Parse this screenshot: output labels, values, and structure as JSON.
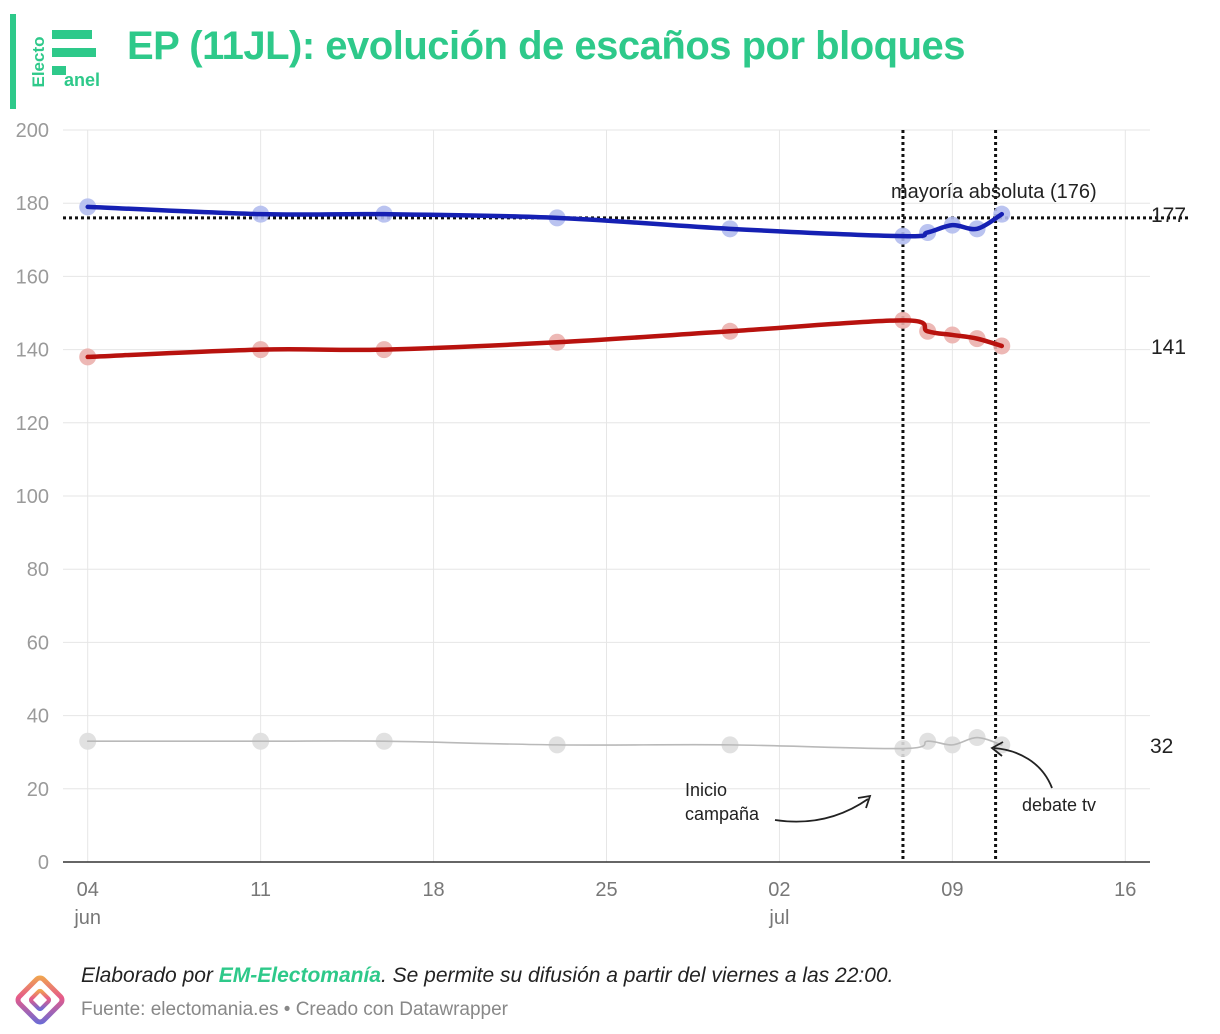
{
  "brand": {
    "logo_text_vertical": "Electo",
    "logo_text": "anel",
    "accent_color": "#2ec98a"
  },
  "title": "EP (11JL): evolución de escaños por bloques",
  "footer": {
    "credit_prefix": "Elaborado por ",
    "credit_brand": "EM-Electomanía",
    "credit_suffix": ". Se permite su difusión a partir del viernes a las 22:00.",
    "source": "Fuente: electomania.es • Creado con Datawrapper"
  },
  "chart_data": {
    "type": "line",
    "title": "EP (11JL): evolución de escaños por bloques",
    "xlabel": "",
    "ylabel": "",
    "ylim": [
      0,
      200
    ],
    "yticks": [
      0,
      20,
      40,
      60,
      80,
      100,
      120,
      140,
      160,
      180,
      200
    ],
    "xlim": [
      "2023-06-03",
      "2023-07-17"
    ],
    "xticks": [
      {
        "date": "2023-06-04",
        "label": "04",
        "sublabel": "jun"
      },
      {
        "date": "2023-06-11",
        "label": "11",
        "sublabel": ""
      },
      {
        "date": "2023-06-18",
        "label": "18",
        "sublabel": ""
      },
      {
        "date": "2023-06-25",
        "label": "25",
        "sublabel": ""
      },
      {
        "date": "2023-07-02",
        "label": "02",
        "sublabel": "jul"
      },
      {
        "date": "2023-07-09",
        "label": "09",
        "sublabel": ""
      },
      {
        "date": "2023-07-16",
        "label": "16",
        "sublabel": ""
      }
    ],
    "grid": true,
    "x": [
      "2023-06-04",
      "2023-06-11",
      "2023-06-16",
      "2023-06-23",
      "2023-06-30",
      "2023-07-07",
      "2023-07-08",
      "2023-07-09",
      "2023-07-10",
      "2023-07-11"
    ],
    "series": [
      {
        "color": "#1520b3",
        "point_color": "#b3bdee",
        "end_label": "177",
        "line_width": 4.5,
        "values": [
          179,
          177,
          177,
          176,
          173,
          171,
          172,
          174,
          173,
          177
        ]
      },
      {
        "color": "#b8120e",
        "point_color": "#ebb0ad",
        "end_label": "141",
        "line_width": 4.5,
        "values": [
          138,
          140,
          140,
          142,
          145,
          148,
          145,
          144,
          143,
          141
        ]
      },
      {
        "color": "#b9b9b9",
        "point_color": "#dedede",
        "end_label": "32",
        "line_width": 1.6,
        "values": [
          33,
          33,
          33,
          32,
          32,
          31,
          33,
          32,
          34,
          32
        ]
      }
    ],
    "reference_lines": [
      {
        "orientation": "horizontal",
        "value": 176,
        "label": "mayoría absoluta (176)"
      },
      {
        "orientation": "vertical",
        "date": "2023-07-07",
        "label": "Inicio campaña",
        "label_lines": [
          "Inicio",
          "campaña"
        ]
      },
      {
        "orientation": "vertical",
        "date": "2023-07-10.75",
        "label": "debate tv"
      }
    ],
    "annotations": [
      {
        "text_lines": [
          "Inicio",
          "campaña"
        ]
      },
      {
        "text_lines": [
          "debate tv"
        ]
      }
    ]
  }
}
